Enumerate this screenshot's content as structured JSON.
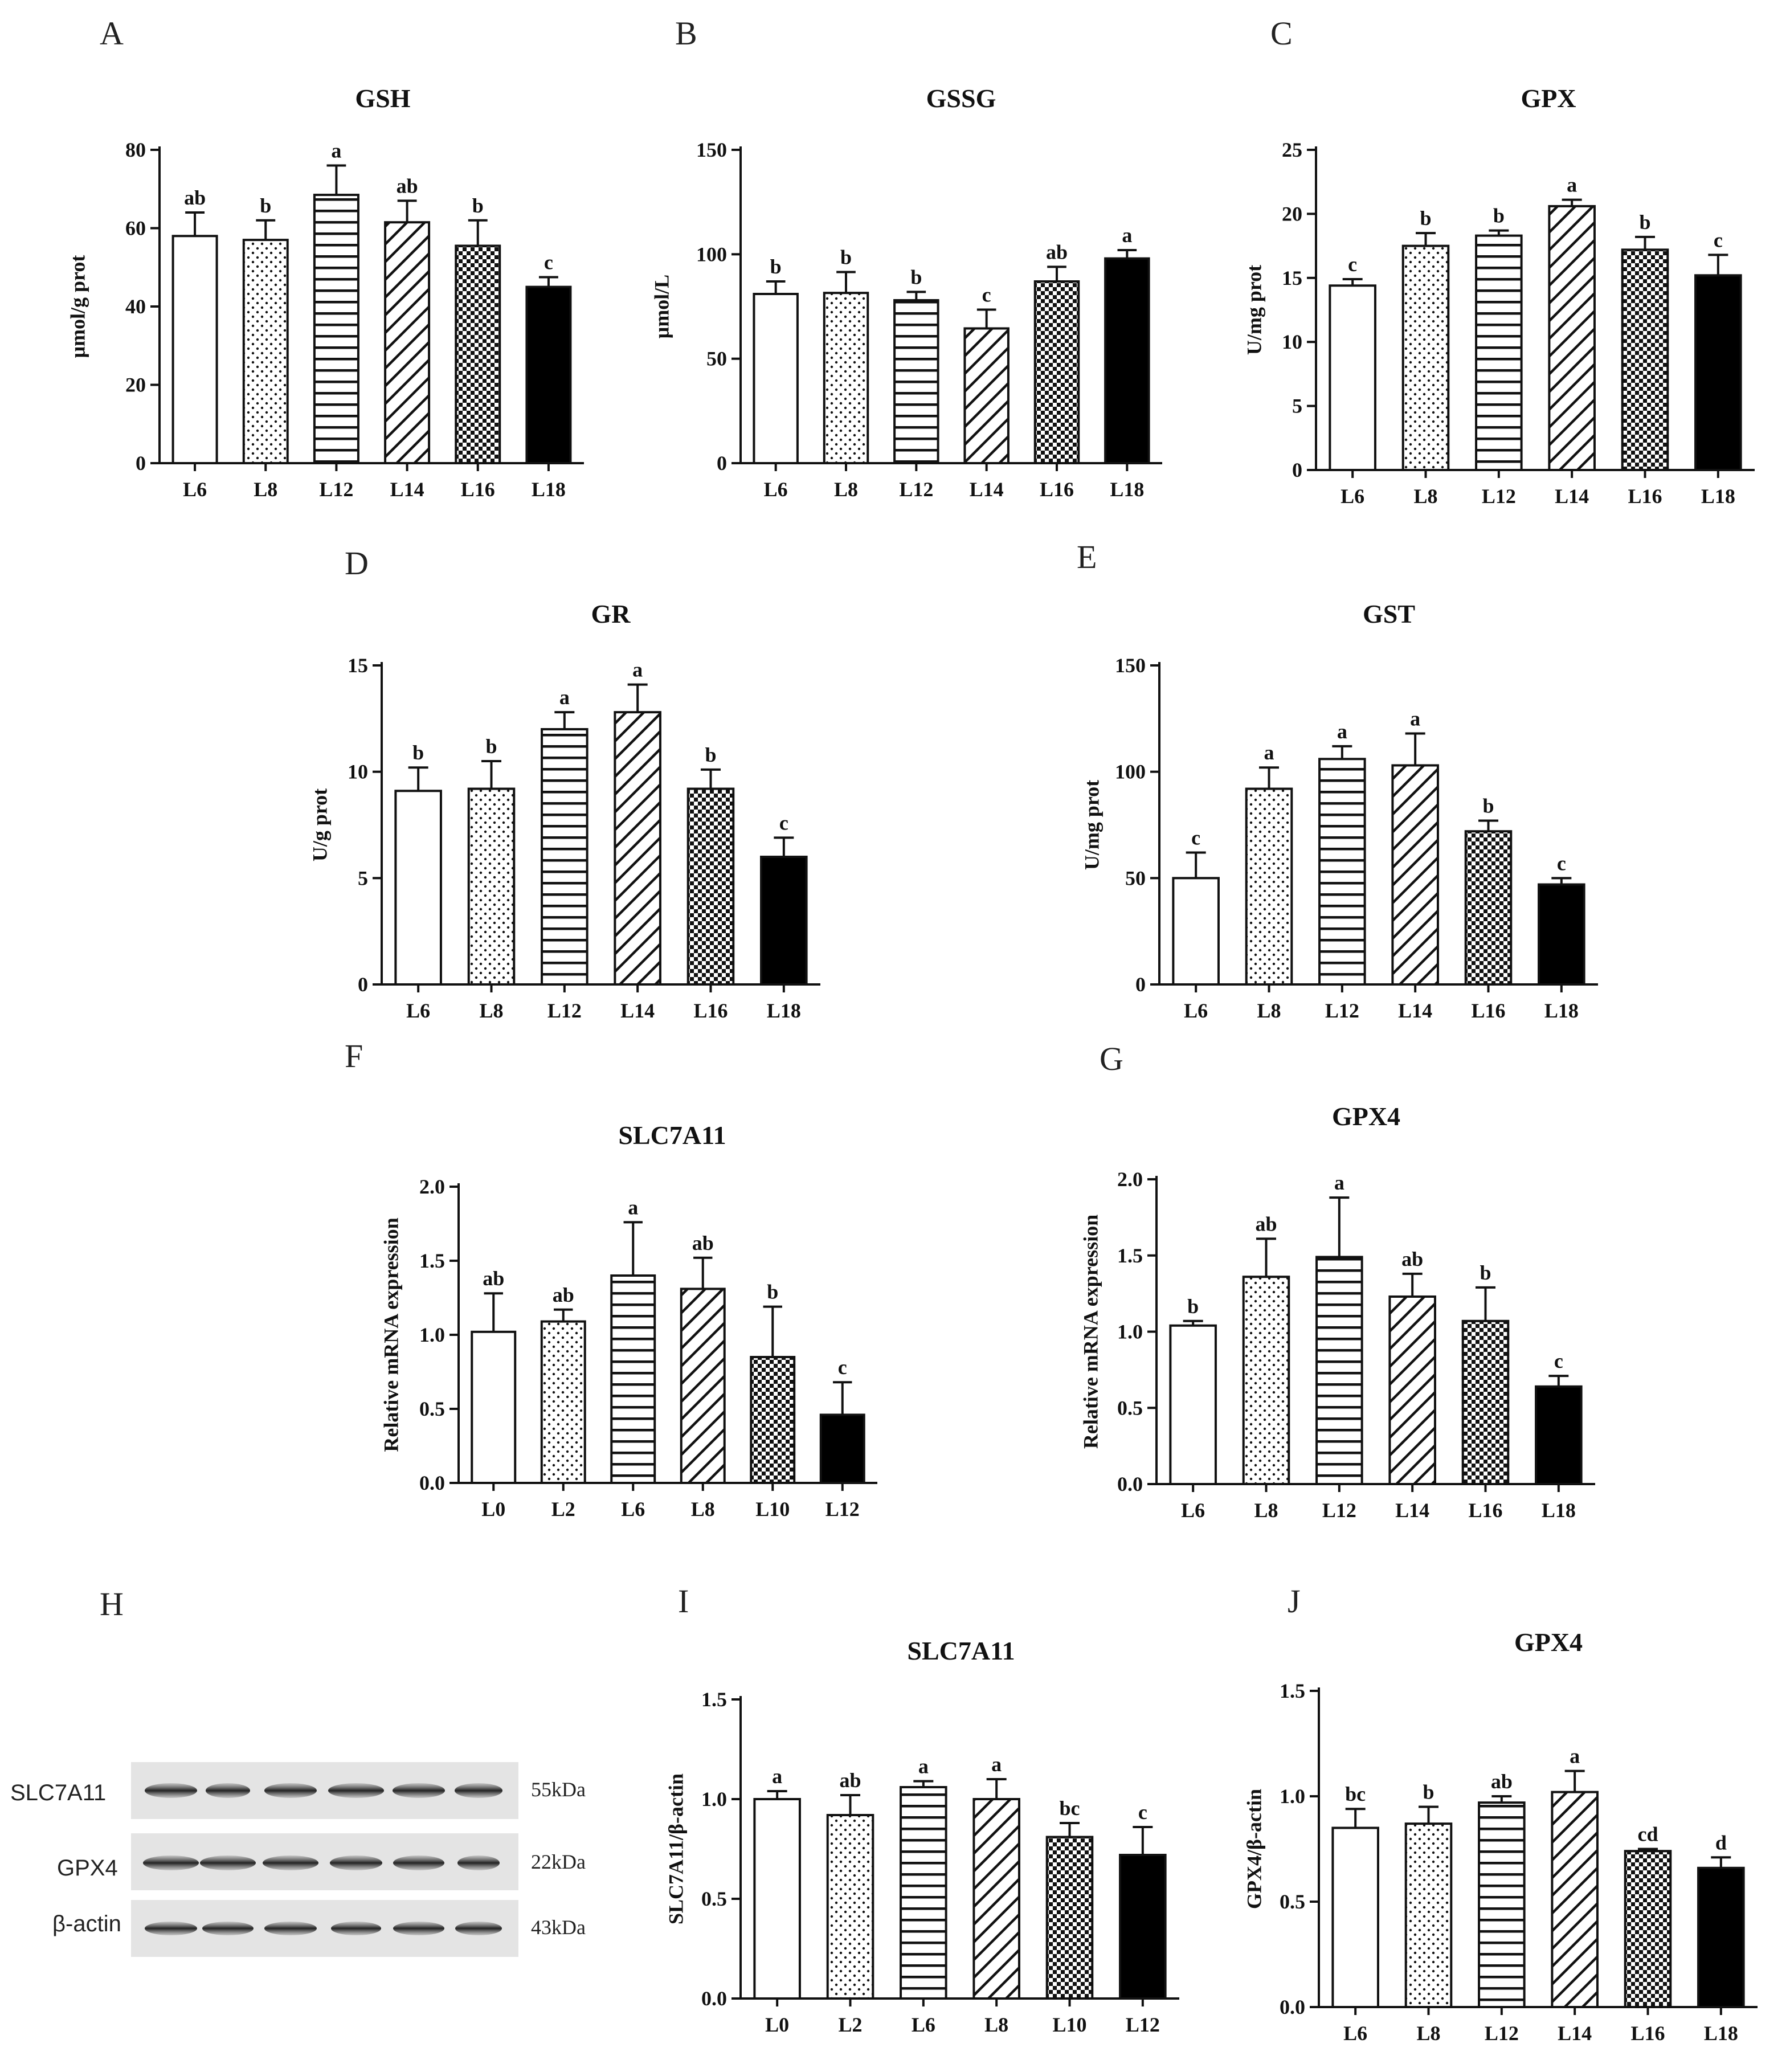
{
  "chart_data": [
    {
      "id": "A",
      "letter": "A",
      "type": "bar",
      "title": "GSH",
      "ylabel": "μmol/g prot",
      "ylim": [
        0,
        80
      ],
      "yticks": [
        "0",
        "20",
        "40",
        "60",
        "80"
      ],
      "yticks_v": [
        0,
        20,
        40,
        60,
        80
      ],
      "categories": [
        "L6",
        "L8",
        "L12",
        "L14",
        "L16",
        "L18"
      ],
      "values": [
        58,
        57,
        68.5,
        61.5,
        55.5,
        45
      ],
      "errors": [
        6,
        5,
        7.5,
        5.5,
        6.5,
        2.5
      ],
      "labels": [
        "ab",
        "b",
        "a",
        "ab",
        "b",
        "c"
      ]
    },
    {
      "id": "B",
      "letter": "B",
      "type": "bar",
      "title": "GSSG",
      "ylabel": "μmol/L",
      "ylim": [
        0,
        150
      ],
      "yticks": [
        "0",
        "50",
        "100",
        "150"
      ],
      "yticks_v": [
        0,
        50,
        100,
        150
      ],
      "categories": [
        "L6",
        "L8",
        "L12",
        "L14",
        "L16",
        "L18"
      ],
      "values": [
        81,
        81.5,
        78,
        64.5,
        87,
        98
      ],
      "errors": [
        6,
        10,
        4,
        9,
        7,
        4
      ],
      "labels": [
        "b",
        "b",
        "b",
        "c",
        "ab",
        "a"
      ]
    },
    {
      "id": "C",
      "letter": "C",
      "type": "bar",
      "title": "GPX",
      "ylabel": "U/mg prot",
      "ylim": [
        0,
        25
      ],
      "yticks": [
        "0",
        "5",
        "10",
        "15",
        "20",
        "25"
      ],
      "yticks_v": [
        0,
        5,
        10,
        15,
        20,
        25
      ],
      "categories": [
        "L6",
        "L8",
        "L12",
        "L14",
        "L16",
        "L18"
      ],
      "values": [
        14.4,
        17.5,
        18.3,
        20.6,
        17.2,
        15.2
      ],
      "errors": [
        0.5,
        1,
        0.4,
        0.5,
        1,
        1.6
      ],
      "labels": [
        "c",
        "b",
        "b",
        "a",
        "b",
        "c"
      ]
    },
    {
      "id": "D",
      "letter": "D",
      "type": "bar",
      "title": "GR",
      "ylabel": "U/g prot",
      "ylim": [
        0,
        15
      ],
      "yticks": [
        "0",
        "5",
        "10",
        "15"
      ],
      "yticks_v": [
        0,
        5,
        10,
        15
      ],
      "categories": [
        "L6",
        "L8",
        "L12",
        "L14",
        "L16",
        "L18"
      ],
      "values": [
        9.1,
        9.2,
        12,
        12.8,
        9.2,
        6
      ],
      "errors": [
        1.1,
        1.3,
        0.8,
        1.3,
        0.9,
        0.9
      ],
      "labels": [
        "b",
        "b",
        "a",
        "a",
        "b",
        "c"
      ]
    },
    {
      "id": "E",
      "letter": "E",
      "type": "bar",
      "title": "GST",
      "ylabel": "U/mg prot",
      "ylim": [
        0,
        150
      ],
      "yticks": [
        "0",
        "50",
        "100",
        "150"
      ],
      "yticks_v": [
        0,
        50,
        100,
        150
      ],
      "categories": [
        "L6",
        "L8",
        "L12",
        "L14",
        "L16",
        "L18"
      ],
      "values": [
        50,
        92,
        106,
        103,
        72,
        47
      ],
      "errors": [
        12,
        10,
        6,
        15,
        5,
        3
      ],
      "labels": [
        "c",
        "a",
        "a",
        "a",
        "b",
        "c"
      ]
    },
    {
      "id": "F",
      "letter": "F",
      "type": "bar",
      "title": "SLC7A11",
      "ylabel": "Relative mRNA expression",
      "ylim": [
        0,
        2.0
      ],
      "yticks": [
        "0.0",
        "0.5",
        "1.0",
        "1.5",
        "2.0"
      ],
      "yticks_v": [
        0,
        0.5,
        1,
        1.5,
        2
      ],
      "categories": [
        "L0",
        "L2",
        "L6",
        "L8",
        "L10",
        "L12"
      ],
      "values": [
        1.02,
        1.09,
        1.4,
        1.31,
        0.85,
        0.46
      ],
      "errors": [
        0.26,
        0.08,
        0.36,
        0.21,
        0.34,
        0.22
      ],
      "labels": [
        "ab",
        "ab",
        "a",
        "ab",
        "b",
        "c"
      ]
    },
    {
      "id": "G",
      "letter": "G",
      "type": "bar",
      "title": "GPX4",
      "ylabel": "Relative mRNA expression",
      "ylim": [
        0,
        2.0
      ],
      "yticks": [
        "0.0",
        "0.5",
        "1.0",
        "1.5",
        "2.0"
      ],
      "yticks_v": [
        0,
        0.5,
        1,
        1.5,
        2
      ],
      "categories": [
        "L6",
        "L8",
        "L12",
        "L14",
        "L16",
        "L18"
      ],
      "values": [
        1.04,
        1.36,
        1.49,
        1.23,
        1.07,
        0.64
      ],
      "errors": [
        0.03,
        0.25,
        0.39,
        0.15,
        0.22,
        0.07
      ],
      "labels": [
        "b",
        "ab",
        "a",
        "ab",
        "b",
        "c"
      ]
    },
    {
      "id": "I",
      "letter": "I",
      "type": "bar",
      "title": "SLC7A11",
      "ylabel": "SLC7A11/β-actin",
      "ylim": [
        0,
        1.5
      ],
      "yticks": [
        "0.0",
        "0.5",
        "1.0",
        "1.5"
      ],
      "yticks_v": [
        0,
        0.5,
        1,
        1.5
      ],
      "categories": [
        "L0",
        "L2",
        "L6",
        "L8",
        "L10",
        "L12"
      ],
      "values": [
        1.0,
        0.92,
        1.06,
        1.0,
        0.81,
        0.72
      ],
      "errors": [
        0.04,
        0.1,
        0.03,
        0.1,
        0.07,
        0.14
      ],
      "labels": [
        "a",
        "ab",
        "a",
        "a",
        "bc",
        "c"
      ]
    },
    {
      "id": "J",
      "letter": "J",
      "type": "bar",
      "title": "GPX4",
      "ylabel": "GPX4/β-actin",
      "ylim": [
        0,
        1.5
      ],
      "yticks": [
        "0.0",
        "0.5",
        "1.0",
        "1.5"
      ],
      "yticks_v": [
        0,
        0.5,
        1,
        1.5
      ],
      "categories": [
        "L6",
        "L8",
        "L12",
        "L14",
        "L16",
        "L18"
      ],
      "values": [
        0.85,
        0.87,
        0.97,
        1.02,
        0.74,
        0.66
      ],
      "errors": [
        0.09,
        0.08,
        0.03,
        0.1,
        0.01,
        0.05
      ],
      "labels": [
        "bc",
        "b",
        "ab",
        "a",
        "cd",
        "d"
      ]
    }
  ],
  "western_blot": {
    "letter": "H",
    "rows": [
      {
        "name": "SLC7A11",
        "kda": "55kDa"
      },
      {
        "name": "GPX4",
        "kda": "22kDa"
      },
      {
        "name": "β-actin",
        "kda": "43kDa"
      }
    ]
  }
}
